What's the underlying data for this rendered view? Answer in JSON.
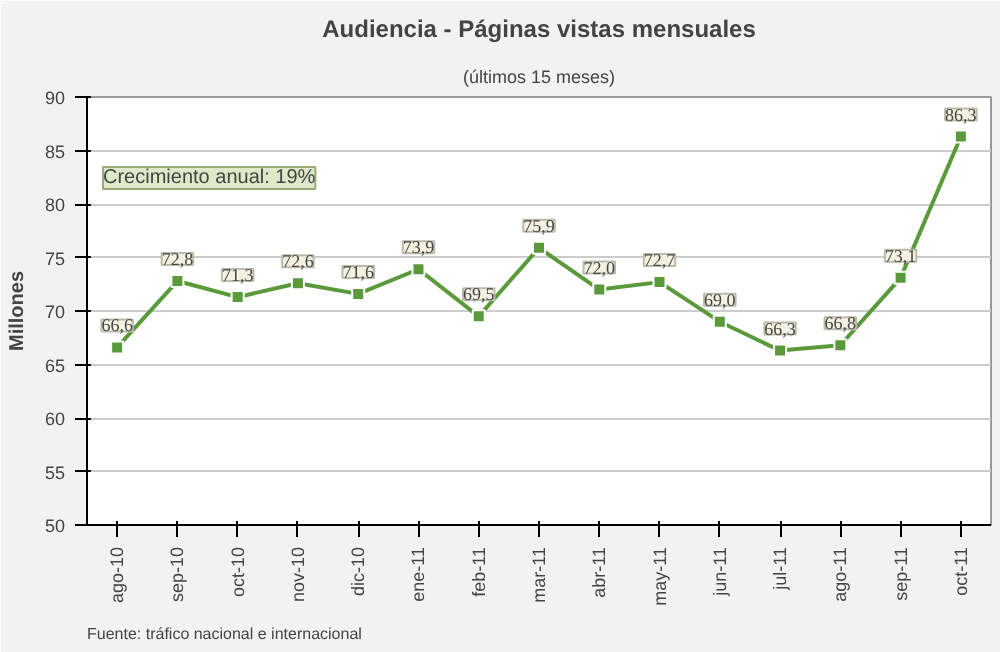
{
  "chart_data": {
    "type": "line",
    "title": "Audiencia - Páginas vistas mensuales",
    "subtitle": "(últimos 15 meses)",
    "ylabel": "Millones",
    "categories": [
      "ago-10",
      "sep-10",
      "oct-10",
      "nov-10",
      "dic-10",
      "ene-11",
      "feb-11",
      "mar-11",
      "abr-11",
      "may-11",
      "jun-11",
      "jul-11",
      "ago-11",
      "sep-11",
      "oct-11"
    ],
    "series": [
      {
        "color": "#5a9a3a",
        "values": [
          66.6,
          72.8,
          71.3,
          72.6,
          71.6,
          73.9,
          69.5,
          75.9,
          72.0,
          72.7,
          69.0,
          66.3,
          66.8,
          73.1,
          86.3
        ],
        "value_labels": [
          "66,6",
          "72,8",
          "71,3",
          "72,6",
          "71,6",
          "73,9",
          "69,5",
          "75,9",
          "72,0",
          "72,7",
          "69,0",
          "66,3",
          "66,8",
          "73,1",
          "86,3"
        ]
      }
    ],
    "ylim": [
      50,
      90
    ],
    "yticks": [
      50,
      55,
      60,
      65,
      70,
      75,
      80,
      85,
      90
    ],
    "grid": "y",
    "marker": "square",
    "line_style": "solid",
    "annotations": [
      "Crecimiento anual: 19%",
      "Fuente: tráfico nacional e internacional"
    ]
  }
}
